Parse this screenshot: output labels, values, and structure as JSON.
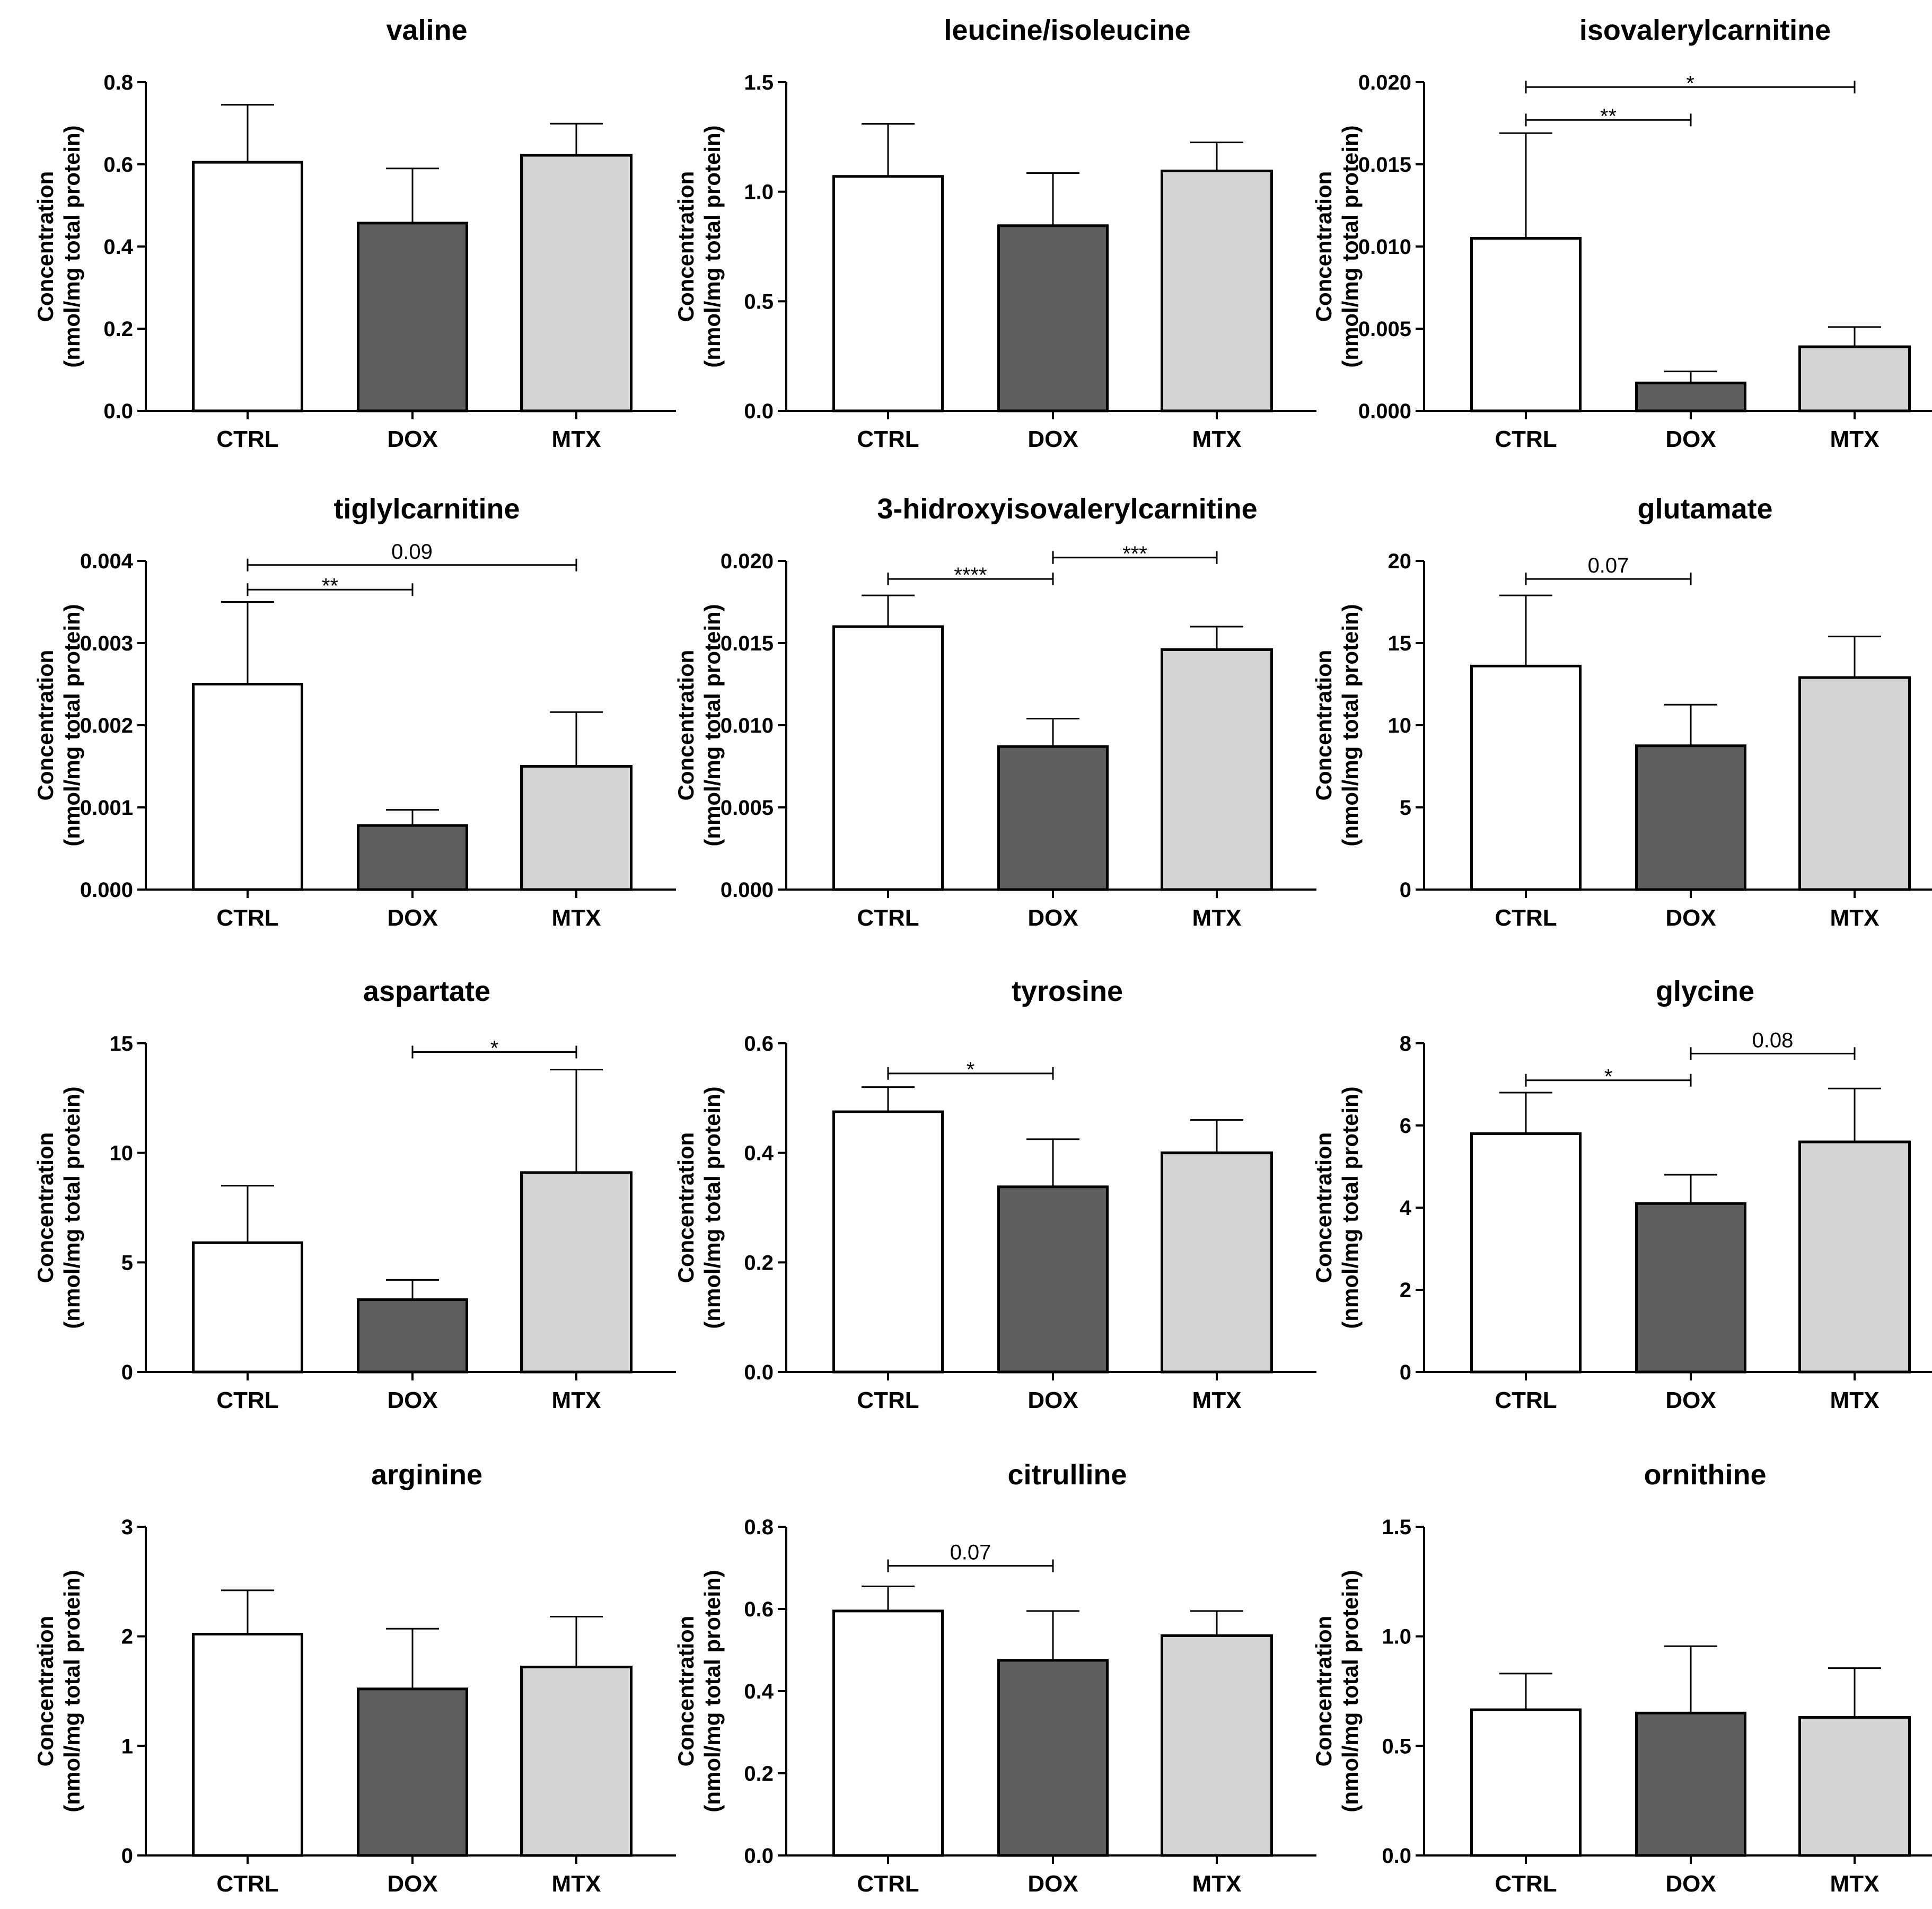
{
  "colors": {
    "CTRL": "#ffffff",
    "DOX": "#5e5e5e",
    "MTX": "#d4d4d4",
    "axis": "#000000"
  },
  "chart_data": [
    {
      "type": "bar",
      "title": "valine",
      "xlabel": "",
      "ylabel": [
        "Concentration",
        "(nmol/mg total protein)"
      ],
      "categories": [
        "CTRL",
        "DOX",
        "MTX"
      ],
      "values": [
        0.605,
        0.457,
        0.622
      ],
      "errors": [
        0.14,
        0.133,
        0.077
      ],
      "ylim": [
        0,
        0.8
      ],
      "ticks": [
        0,
        0.2,
        0.4,
        0.6,
        0.8
      ],
      "tick_labels": [
        "0.0",
        "0.2",
        "0.4",
        "0.6",
        "0.8"
      ],
      "brackets": []
    },
    {
      "type": "bar",
      "title": "leucine/isoleucine",
      "xlabel": "",
      "ylabel": [
        "Concentration",
        "(nmol/mg total protein)"
      ],
      "categories": [
        "CTRL",
        "DOX",
        "MTX"
      ],
      "values": [
        1.07,
        0.845,
        1.095
      ],
      "errors": [
        0.24,
        0.24,
        0.13
      ],
      "ylim": [
        0,
        1.5
      ],
      "ticks": [
        0,
        0.5,
        1.0,
        1.5
      ],
      "tick_labels": [
        "0.0",
        "0.5",
        "1.0",
        "1.5"
      ],
      "brackets": []
    },
    {
      "type": "bar",
      "title": "isovalerylcarnitine",
      "xlabel": "",
      "ylabel": [
        "Concentration",
        "(nmol/mg total protein)"
      ],
      "categories": [
        "CTRL",
        "DOX",
        "MTX"
      ],
      "values": [
        0.0105,
        0.0017,
        0.0039
      ],
      "errors": [
        0.0064,
        0.0007,
        0.0012
      ],
      "ylim": [
        0,
        0.02
      ],
      "ticks": [
        0,
        0.005,
        0.01,
        0.015,
        0.02
      ],
      "tick_labels": [
        "0.000",
        "0.005",
        "0.010",
        "0.015",
        "0.020"
      ],
      "brackets": [
        {
          "from": 0,
          "to": 1,
          "y": 0.0177,
          "label": "**"
        },
        {
          "from": 0,
          "to": 2,
          "y": 0.0197,
          "label": "*"
        }
      ]
    },
    {
      "type": "bar",
      "title": "tiglylcarnitine",
      "xlabel": "",
      "ylabel": [
        "Concentration",
        "(nmol/mg total protein)"
      ],
      "categories": [
        "CTRL",
        "DOX",
        "MTX"
      ],
      "values": [
        0.0025,
        0.00078,
        0.0015
      ],
      "errors": [
        0.001,
        0.00019,
        0.00066
      ],
      "ylim": [
        0,
        0.004
      ],
      "ticks": [
        0,
        0.001,
        0.002,
        0.003,
        0.004
      ],
      "tick_labels": [
        "0.000",
        "0.001",
        "0.002",
        "0.003",
        "0.004"
      ],
      "brackets": [
        {
          "from": 0,
          "to": 1,
          "y": 0.00365,
          "label": "**"
        },
        {
          "from": 0,
          "to": 2,
          "y": 0.00395,
          "label": "0.09"
        }
      ]
    },
    {
      "type": "bar",
      "title": "3-hidroxyisovalerylcarnitine",
      "xlabel": "",
      "ylabel": [
        "Concentration",
        "(nmol/mg total protein)"
      ],
      "categories": [
        "CTRL",
        "DOX",
        "MTX"
      ],
      "values": [
        0.016,
        0.0087,
        0.0146
      ],
      "errors": [
        0.0019,
        0.0017,
        0.0014
      ],
      "ylim": [
        0,
        0.02
      ],
      "ticks": [
        0,
        0.005,
        0.01,
        0.015,
        0.02
      ],
      "tick_labels": [
        "0.000",
        "0.005",
        "0.010",
        "0.015",
        "0.020"
      ],
      "brackets": [
        {
          "from": 0,
          "to": 1,
          "y": 0.0189,
          "label": "****"
        },
        {
          "from": 1,
          "to": 2,
          "y": 0.0202,
          "label": "***"
        }
      ]
    },
    {
      "type": "bar",
      "title": "glutamate",
      "xlabel": "",
      "ylabel": [
        "Concentration",
        "(nmol/mg total protein)"
      ],
      "categories": [
        "CTRL",
        "DOX",
        "MTX"
      ],
      "values": [
        13.6,
        8.75,
        12.9
      ],
      "errors": [
        4.3,
        2.5,
        2.5
      ],
      "ylim": [
        0,
        20
      ],
      "ticks": [
        0,
        5,
        10,
        15,
        20
      ],
      "tick_labels": [
        "0",
        "5",
        "10",
        "15",
        "20"
      ],
      "brackets": [
        {
          "from": 0,
          "to": 1,
          "y": 18.9,
          "label": "0.07"
        }
      ]
    },
    {
      "type": "bar",
      "title": "aspartate",
      "xlabel": "",
      "ylabel": [
        "Concentration",
        "(nmol/mg total protein)"
      ],
      "categories": [
        "CTRL",
        "DOX",
        "MTX"
      ],
      "values": [
        5.9,
        3.3,
        9.1
      ],
      "errors": [
        2.6,
        0.9,
        4.7
      ],
      "ylim": [
        0,
        15
      ],
      "ticks": [
        0,
        5,
        10,
        15
      ],
      "tick_labels": [
        "0",
        "5",
        "10",
        "15"
      ],
      "brackets": [
        {
          "from": 1,
          "to": 2,
          "y": 14.6,
          "label": "*"
        }
      ]
    },
    {
      "type": "bar",
      "title": "tyrosine",
      "xlabel": "",
      "ylabel": [
        "Concentration",
        "(nmol/mg total protein)"
      ],
      "categories": [
        "CTRL",
        "DOX",
        "MTX"
      ],
      "values": [
        0.475,
        0.338,
        0.4
      ],
      "errors": [
        0.045,
        0.087,
        0.06
      ],
      "ylim": [
        0,
        0.6
      ],
      "ticks": [
        0,
        0.2,
        0.4,
        0.6
      ],
      "tick_labels": [
        "0.0",
        "0.2",
        "0.4",
        "0.6"
      ],
      "brackets": [
        {
          "from": 0,
          "to": 1,
          "y": 0.545,
          "label": "*"
        }
      ]
    },
    {
      "type": "bar",
      "title": "glycine",
      "xlabel": "",
      "ylabel": [
        "Concentration",
        "(nmol/mg total protein)"
      ],
      "categories": [
        "CTRL",
        "DOX",
        "MTX"
      ],
      "values": [
        5.8,
        4.1,
        5.6
      ],
      "errors": [
        1.0,
        0.7,
        1.3
      ],
      "ylim": [
        0,
        8
      ],
      "ticks": [
        0,
        2,
        4,
        6,
        8
      ],
      "tick_labels": [
        "0",
        "2",
        "4",
        "6",
        "8"
      ],
      "brackets": [
        {
          "from": 0,
          "to": 1,
          "y": 7.1,
          "label": "*"
        },
        {
          "from": 1,
          "to": 2,
          "y": 7.75,
          "label": "0.08"
        }
      ]
    },
    {
      "type": "bar",
      "title": "arginine",
      "xlabel": "",
      "ylabel": [
        "Concentration",
        "(nmol/mg total protein)"
      ],
      "categories": [
        "CTRL",
        "DOX",
        "MTX"
      ],
      "values": [
        2.02,
        1.52,
        1.72
      ],
      "errors": [
        0.4,
        0.55,
        0.46
      ],
      "ylim": [
        0,
        3
      ],
      "ticks": [
        0,
        1,
        2,
        3
      ],
      "tick_labels": [
        "0",
        "1",
        "2",
        "3"
      ],
      "brackets": []
    },
    {
      "type": "bar",
      "title": "citrulline",
      "xlabel": "",
      "ylabel": [
        "Concentration",
        "(nmol/mg total protein)"
      ],
      "categories": [
        "CTRL",
        "DOX",
        "MTX"
      ],
      "values": [
        0.595,
        0.475,
        0.535
      ],
      "errors": [
        0.06,
        0.12,
        0.06
      ],
      "ylim": [
        0,
        0.8
      ],
      "ticks": [
        0,
        0.2,
        0.4,
        0.6,
        0.8
      ],
      "tick_labels": [
        "0.0",
        "0.2",
        "0.4",
        "0.6",
        "0.8"
      ],
      "brackets": [
        {
          "from": 0,
          "to": 1,
          "y": 0.705,
          "label": "0.07"
        }
      ]
    },
    {
      "type": "bar",
      "title": "ornithine",
      "xlabel": "",
      "ylabel": [
        "Concentration",
        "(nmol/mg total protein)"
      ],
      "categories": [
        "CTRL",
        "DOX",
        "MTX"
      ],
      "values": [
        0.665,
        0.65,
        0.63
      ],
      "errors": [
        0.165,
        0.305,
        0.225
      ],
      "ylim": [
        0,
        1.5
      ],
      "ticks": [
        0,
        0.5,
        1.0,
        1.5
      ],
      "tick_labels": [
        "0.0",
        "0.5",
        "1.0",
        "1.5"
      ],
      "brackets": []
    }
  ]
}
